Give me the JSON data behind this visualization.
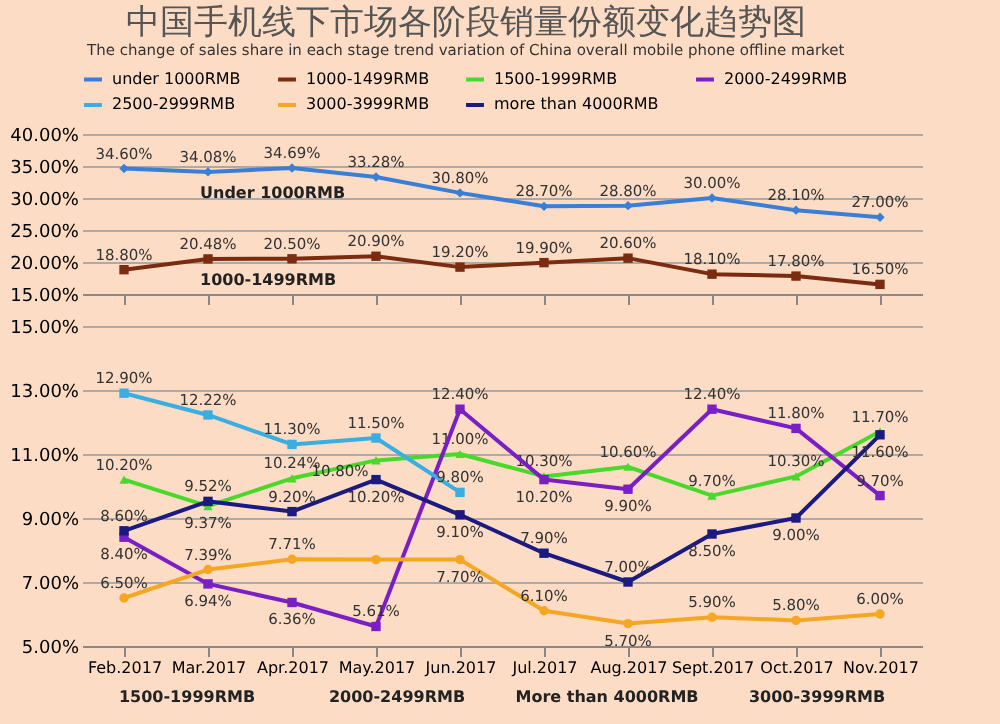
{
  "chart_data": [
    {
      "type": "line",
      "title": "中国手机线下市场各阶段销量份额变化趋势图",
      "subtitle": "The change of sales share in each stage trend variation of China overall mobile phone offline market",
      "categories": [
        "Feb.2017",
        "Mar.2017",
        "Apr.2017",
        "May.2017",
        "Jun.2017",
        "Jul.2017",
        "Aug.2017",
        "Sept.2017",
        "Oct.2017",
        "Nov.2017"
      ],
      "series": [
        {
          "name": "under 1000RMB",
          "color": "#3a7fd5",
          "marker": "diamond",
          "values": [
            34.6,
            34.08,
            34.69,
            33.28,
            30.8,
            28.7,
            28.8,
            30.0,
            28.1,
            27.0
          ],
          "value_labels": [
            "34.60%",
            "34.08%",
            "34.69%",
            "33.28%",
            "30.80%",
            "28.70%",
            "28.80%",
            "30.00%",
            "28.10%",
            "27.00%"
          ]
        },
        {
          "name": "1000-1499RMB",
          "color": "#7b2c10",
          "marker": "square",
          "values": [
            18.8,
            20.48,
            20.5,
            20.9,
            19.2,
            19.9,
            20.6,
            18.1,
            17.8,
            16.5
          ],
          "value_labels": [
            "18.80%",
            "20.48%",
            "20.50%",
            "20.90%",
            "19.20%",
            "19.90%",
            "20.60%",
            "18.10%",
            "17.80%",
            "16.50%"
          ]
        }
      ],
      "ylim": [
        15,
        40
      ],
      "yticks": [
        {
          "value": 15,
          "label": "15.00%"
        },
        {
          "value": 20,
          "label": "20.00%"
        },
        {
          "value": 25,
          "label": "25.00%"
        },
        {
          "value": 30,
          "label": "30.00%"
        },
        {
          "value": 35,
          "label": "35.00%"
        },
        {
          "value": 40,
          "label": "40.00%"
        }
      ],
      "annotations": [
        {
          "text": "Under 1000RMB",
          "x": "Mar.2017",
          "y": 34.08
        },
        {
          "text": "1000-1499RMB",
          "x": "Mar.2017",
          "y": 20.48
        }
      ],
      "grid": "y",
      "legend": "top",
      "tick_labels": "y",
      "line_style": "solid"
    },
    {
      "type": "line",
      "categories": [
        "Feb.2017",
        "Mar.2017",
        "Apr.2017",
        "May.2017",
        "Jun.2017",
        "Jul.2017",
        "Aug.2017",
        "Sept.2017",
        "Oct.2017",
        "Nov.2017"
      ],
      "series": [
        {
          "name": "1500-1999RMB",
          "color": "#4ad82a",
          "marker": "triangle",
          "values": [
            10.2,
            9.37,
            10.24,
            10.8,
            11.0,
            10.3,
            10.6,
            9.7,
            10.3,
            11.7
          ],
          "value_labels": [
            "10.20%",
            "9.37%",
            "10.24%",
            "10.80%",
            "11.00%",
            "10.30%",
            "10.60%",
            "9.70%",
            "10.30%",
            "11.70%"
          ]
        },
        {
          "name": "2000-2499RMB",
          "color": "#7a1fc4",
          "marker": "square",
          "values": [
            8.4,
            6.94,
            6.36,
            5.61,
            12.4,
            10.2,
            9.9,
            12.4,
            11.8,
            9.7
          ],
          "value_labels": [
            "8.40%",
            "6.94%",
            "6.36%",
            "5.61%",
            "12.40%",
            "10.20%",
            "9.90%",
            "12.40%",
            "11.80%",
            "9.70%"
          ]
        },
        {
          "name": "2500-2999RMB",
          "color": "#3aaee0",
          "marker": "square",
          "values": [
            12.9,
            12.22,
            11.3,
            11.5,
            9.8,
            null,
            null,
            null,
            null,
            null
          ],
          "value_labels": [
            "12.90%",
            "12.22%",
            "11.30%",
            "11.50%",
            "9.80%",
            null,
            null,
            null,
            null,
            null
          ]
        },
        {
          "name": "3000-3999RMB",
          "color": "#f5a623",
          "marker": "circle",
          "values": [
            6.5,
            7.39,
            7.71,
            7.7,
            7.7,
            6.1,
            5.7,
            5.9,
            5.8,
            6.0
          ],
          "value_labels": [
            "6.50%",
            "7.39%",
            "7.71%",
            null,
            "7.70%",
            "6.10%",
            "5.70%",
            "5.90%",
            "5.80%",
            "6.00%"
          ]
        },
        {
          "name": "more than 4000RMB",
          "color": "#1a1a80",
          "marker": "square",
          "values": [
            8.6,
            9.52,
            9.2,
            10.2,
            9.1,
            7.9,
            7.0,
            8.5,
            9.0,
            11.6
          ],
          "value_labels": [
            "8.60%",
            "9.52%",
            "9.20%",
            "10.20%",
            "9.10%",
            "7.90%",
            "7.00%",
            "8.50%",
            "9.00%",
            "11.60%"
          ]
        }
      ],
      "ylim": [
        5,
        15
      ],
      "yticks": [
        {
          "value": 5,
          "label": "5.00%"
        },
        {
          "value": 7,
          "label": "7.00%"
        },
        {
          "value": 9,
          "label": "9.00%"
        },
        {
          "value": 11,
          "label": "11.00%"
        },
        {
          "value": 13,
          "label": "13.00%"
        },
        {
          "value": 15,
          "label": "15.00%"
        }
      ],
      "annotations": [
        "1500-1999RMB",
        "2000-2499RMB",
        "More than 4000RMB",
        "3000-3999RMB"
      ],
      "grid": "y",
      "legend": "top",
      "line_style": "solid"
    }
  ]
}
